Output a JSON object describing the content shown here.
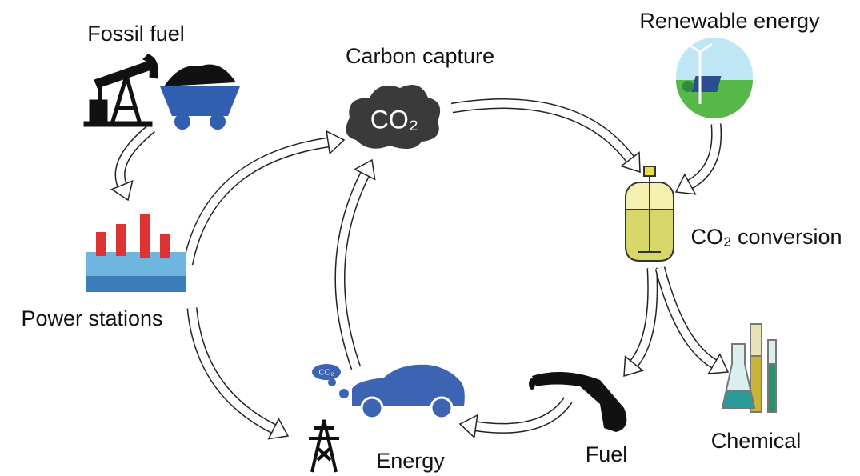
{
  "nodes": [
    {
      "label": "Fossil fuel"
    },
    {
      "label": "Carbon capture"
    },
    {
      "label": "Renewable energy"
    },
    {
      "label": "Power stations"
    },
    {
      "label": "CO₂ conversion"
    },
    {
      "label": "Energy"
    },
    {
      "label": "Fuel"
    },
    {
      "label": "Chemical"
    }
  ],
  "icon_texts": {
    "cloud": "CO₂",
    "exhaust": "CO₂"
  }
}
